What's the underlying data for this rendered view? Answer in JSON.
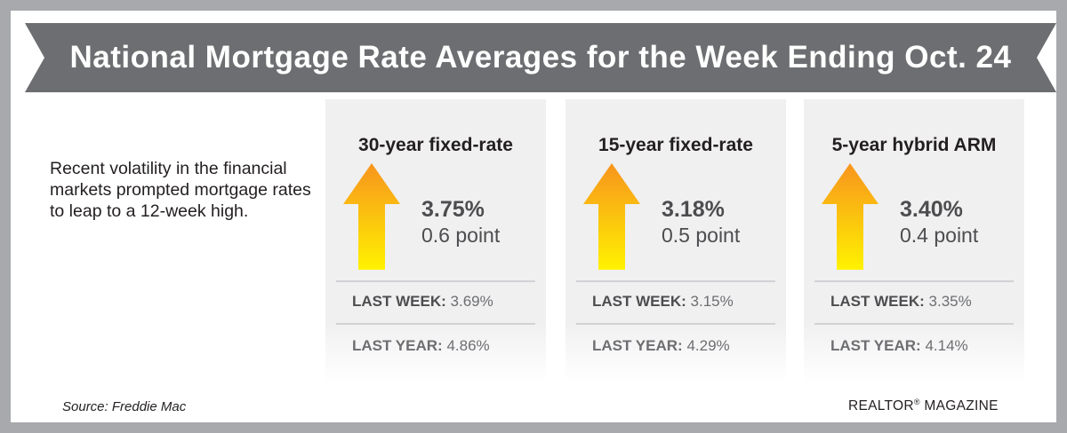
{
  "title": "National Mortgage Rate Averages for the Week Ending Oct. 24",
  "intro": "Recent volatility in the financial markets prompted mortgage rates to leap to a 12-week high.",
  "colors": {
    "banner": "#6d6e71",
    "frame": "#a7a9ac",
    "card": "#f0f0f1",
    "arrow_top": "#f7941d",
    "arrow_bottom": "#fff200"
  },
  "cards": [
    {
      "title": "30-year fixed-rate",
      "icon": "up-arrow-icon",
      "rate": "3.75%",
      "change": "0.6 point",
      "last_week_label": "LAST WEEK:",
      "last_week_value": "3.69%",
      "last_year_label": "LAST YEAR:",
      "last_year_value": "4.86%"
    },
    {
      "title": "15-year fixed-rate",
      "icon": "up-arrow-icon",
      "rate": "3.18%",
      "change": "0.5 point",
      "last_week_label": "LAST WEEK:",
      "last_week_value": "3.15%",
      "last_year_label": "LAST YEAR:",
      "last_year_value": "4.29%"
    },
    {
      "title": "5-year hybrid ARM",
      "icon": "up-arrow-icon",
      "rate": "3.40%",
      "change": "0.4 point",
      "last_week_label": "LAST WEEK:",
      "last_week_value": "3.35%",
      "last_year_label": "LAST YEAR:",
      "last_year_value": "4.14%"
    }
  ],
  "source": "Source: Freddie Mac",
  "brand": {
    "name": "REALTOR",
    "mark": "®",
    "suffix": " MAGAZINE"
  }
}
